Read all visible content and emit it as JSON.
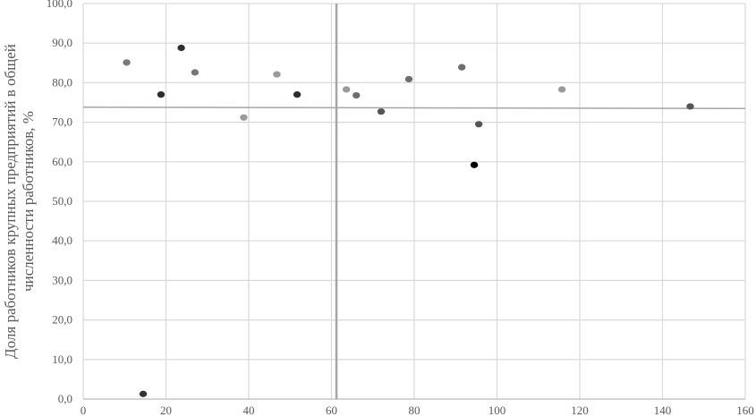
{
  "chart_data": {
    "type": "scatter",
    "title": "",
    "xlabel": "",
    "ylabel_lines": [
      "Доля работников крупных предприятий в общей",
      "численности работников, %"
    ],
    "xlim": [
      0,
      160
    ],
    "ylim": [
      0,
      100
    ],
    "x_ticks": [
      "0",
      "20",
      "40",
      "60",
      "80",
      "100",
      "120",
      "140",
      "160"
    ],
    "y_ticks": [
      "0,0",
      "10,0",
      "20,0",
      "30,0",
      "40,0",
      "50,0",
      "60,0",
      "70,0",
      "80,0",
      "90,0",
      "100,0"
    ],
    "grid": true,
    "legend": "none",
    "reference_lines": {
      "vertical_x": 61.2,
      "horizontal_y": 73.7
    },
    "points": [
      {
        "x": 10.5,
        "y": 85.1,
        "color": "#7a7a7a"
      },
      {
        "x": 14.5,
        "y": 1.3,
        "color": "#333333"
      },
      {
        "x": 18.8,
        "y": 77.0,
        "color": "#2e2e2e"
      },
      {
        "x": 23.7,
        "y": 88.8,
        "color": "#2e2e2e"
      },
      {
        "x": 27.0,
        "y": 82.6,
        "color": "#777777"
      },
      {
        "x": 38.8,
        "y": 71.2,
        "color": "#9a9a9a"
      },
      {
        "x": 46.8,
        "y": 82.1,
        "color": "#9a9a9a"
      },
      {
        "x": 51.7,
        "y": 77.0,
        "color": "#2e2e2e"
      },
      {
        "x": 63.6,
        "y": 78.3,
        "color": "#9a9a9a"
      },
      {
        "x": 66.0,
        "y": 76.8,
        "color": "#6e6e6e"
      },
      {
        "x": 72.0,
        "y": 72.7,
        "color": "#555555"
      },
      {
        "x": 78.7,
        "y": 80.9,
        "color": "#6e6e6e"
      },
      {
        "x": 91.5,
        "y": 83.9,
        "color": "#6e6e6e"
      },
      {
        "x": 94.5,
        "y": 59.2,
        "color": "#000000"
      },
      {
        "x": 95.6,
        "y": 69.5,
        "color": "#555555"
      },
      {
        "x": 115.7,
        "y": 78.3,
        "color": "#9a9a9a"
      },
      {
        "x": 146.7,
        "y": 74.0,
        "color": "#555555"
      }
    ],
    "colors": {
      "grid": "#d9d9d9",
      "reference_line": "#a6a6a6",
      "axis_text": "#595959"
    }
  }
}
